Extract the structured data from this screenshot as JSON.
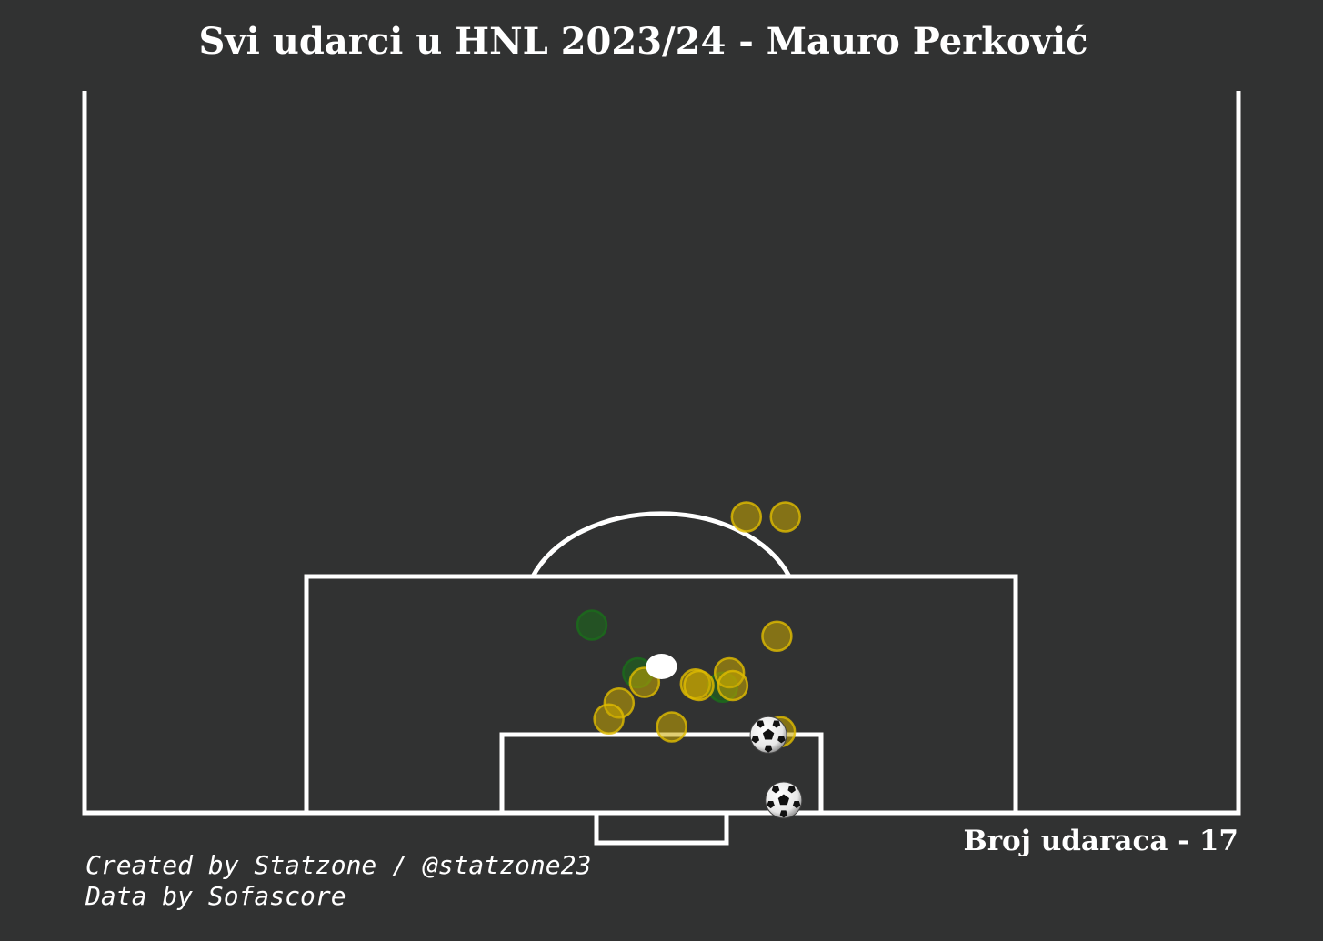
{
  "title": "Svi udarci u HNL 2023/24 - Mauro Perković",
  "shot_count_label": "Broj udaraca - 17",
  "credits": {
    "created_by": "Created by Statzone / @statzone23",
    "data_source": "Data by Sofascore"
  },
  "colors": {
    "background": "#313232",
    "lines": "#ffffff",
    "on_target": "#c9a800",
    "blocked_or_saved": "#1a6e1a",
    "average_position": "#ffffff"
  },
  "icons": {
    "goal_marker": "soccer-ball-icon"
  },
  "chart_data": {
    "type": "scatter",
    "title": "Svi udarci u HNL 2023/24 - Mauro Perković",
    "xlabel": "",
    "ylabel": "",
    "pitch_units": "metres from goal line; x = across pitch (0 = left touchline of half, 68 = right), y = distance from goal line",
    "xlim": [
      0,
      68
    ],
    "ylim": [
      0,
      42.5
    ],
    "shots": [
      {
        "x": 39.0,
        "y": 18.6,
        "outcome": "yellow"
      },
      {
        "x": 41.3,
        "y": 18.6,
        "outcome": "yellow"
      },
      {
        "x": 40.8,
        "y": 11.1,
        "outcome": "yellow"
      },
      {
        "x": 29.9,
        "y": 11.8,
        "outcome": "green"
      },
      {
        "x": 32.6,
        "y": 8.8,
        "outcome": "green"
      },
      {
        "x": 37.6,
        "y": 7.9,
        "outcome": "green"
      },
      {
        "x": 38.0,
        "y": 8.8,
        "outcome": "yellow"
      },
      {
        "x": 33.0,
        "y": 8.2,
        "outcome": "yellow"
      },
      {
        "x": 36.0,
        "y": 8.1,
        "outcome": "yellow"
      },
      {
        "x": 36.2,
        "y": 8.0,
        "outcome": "yellow"
      },
      {
        "x": 38.2,
        "y": 8.0,
        "outcome": "yellow"
      },
      {
        "x": 31.5,
        "y": 6.9,
        "outcome": "yellow"
      },
      {
        "x": 30.9,
        "y": 5.9,
        "outcome": "yellow"
      },
      {
        "x": 34.6,
        "y": 5.4,
        "outcome": "yellow"
      },
      {
        "x": 41.0,
        "y": 5.1,
        "outcome": "yellow"
      },
      {
        "x": 40.3,
        "y": 4.9,
        "outcome": "goal"
      },
      {
        "x": 41.2,
        "y": 0.8,
        "outcome": "goal"
      }
    ],
    "average_position": {
      "x": 34.0,
      "y": 9.2
    }
  }
}
